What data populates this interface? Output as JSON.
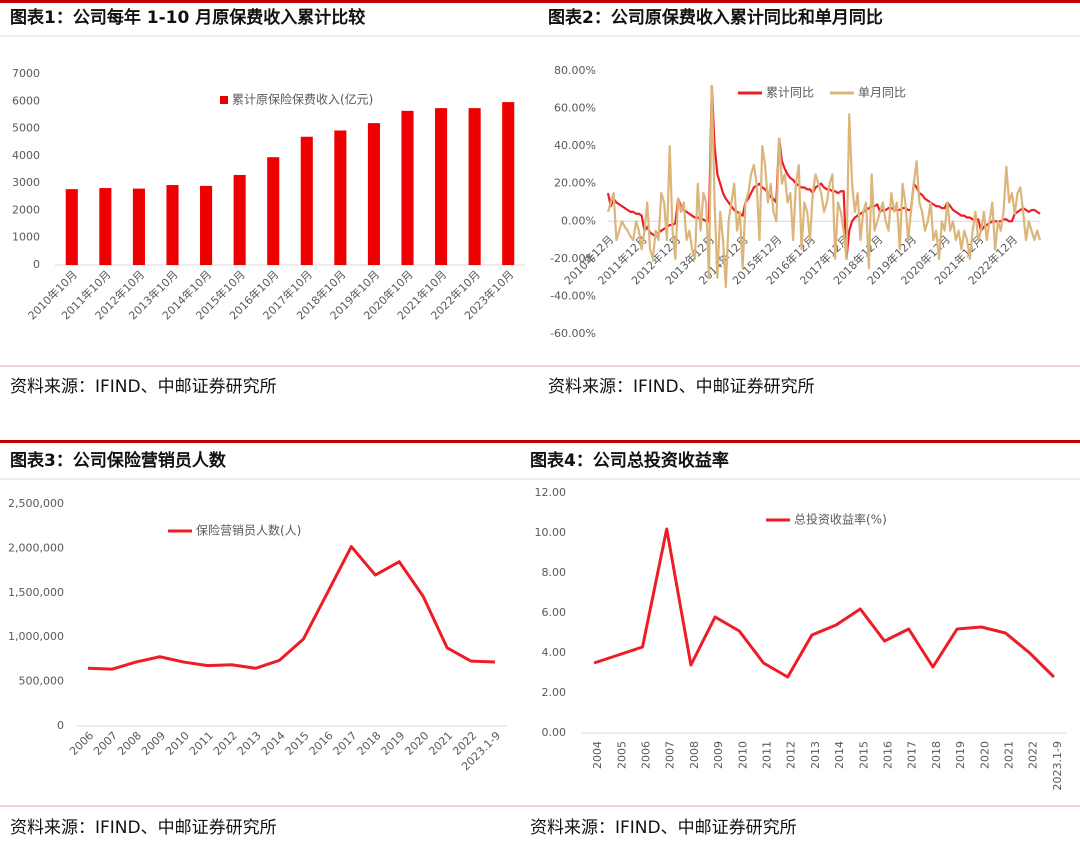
{
  "chart_data": [
    {
      "type": "bar",
      "title": "图表1：公司每年 1-10 月原保费收入累计比较",
      "source": "资料来源：IFIND、中邮证券研究所",
      "categories": [
        "2010年10月",
        "2011年10月",
        "2012年10月",
        "2013年10月",
        "2014年10月",
        "2015年10月",
        "2016年10月",
        "2017年10月",
        "2018年10月",
        "2019年10月",
        "2020年10月",
        "2021年10月",
        "2022年10月",
        "2023年10月"
      ],
      "series": [
        {
          "name": "累计原保险保费收入(亿元)",
          "color": "#ee0000",
          "values": [
            2780,
            2820,
            2800,
            2930,
            2900,
            3300,
            3950,
            4700,
            4930,
            5200,
            5650,
            5750,
            5750,
            5970
          ]
        }
      ],
      "ylim": [
        0,
        7000
      ],
      "yticks": [
        0,
        1000,
        2000,
        3000,
        4000,
        5000,
        6000,
        7000
      ]
    },
    {
      "type": "line",
      "title": "图表2：公司原保费收入累计同比和单月同比",
      "source": "资料来源：IFIND、中邮证券研究所",
      "categories": [
        "2010年12月",
        null,
        null,
        null,
        null,
        null,
        null,
        null,
        null,
        null,
        null,
        null,
        "2011年12月",
        null,
        null,
        null,
        null,
        null,
        null,
        null,
        null,
        null,
        null,
        null,
        "2012年12月",
        null,
        null,
        null,
        null,
        null,
        null,
        null,
        null,
        null,
        null,
        null,
        "2013年12月",
        null,
        null,
        null,
        null,
        null,
        null,
        null,
        null,
        null,
        null,
        null,
        "2014年12月",
        null,
        null,
        null,
        null,
        null,
        null,
        null,
        null,
        null,
        null,
        null,
        "2015年12月",
        null,
        null,
        null,
        null,
        null,
        null,
        null,
        null,
        null,
        null,
        null,
        "2016年12月",
        null,
        null,
        null,
        null,
        null,
        null,
        null,
        null,
        null,
        null,
        null,
        "2017年12月",
        null,
        null,
        null,
        null,
        null,
        null,
        null,
        null,
        null,
        null,
        null,
        "2018年12月",
        null,
        null,
        null,
        null,
        null,
        null,
        null,
        null,
        null,
        null,
        null,
        "2019年12月",
        null,
        null,
        null,
        null,
        null,
        null,
        null,
        null,
        null,
        null,
        null,
        "2020年12月",
        null,
        null,
        null,
        null,
        null,
        null,
        null,
        null,
        null,
        null,
        null,
        "2021年12月",
        null,
        null,
        null,
        null,
        null,
        null,
        null,
        null,
        null,
        null,
        null,
        "2022年12月",
        null,
        null,
        null,
        null,
        null,
        null,
        null,
        null,
        null,
        null
      ],
      "series": [
        {
          "name": "累计同比",
          "color": "#ee1c25",
          "values": [
            15,
            8,
            12,
            10,
            9,
            8,
            7,
            6,
            5,
            5,
            4,
            4,
            3,
            -5,
            -3,
            -6,
            -7,
            -8,
            -6,
            -5,
            -4,
            -3,
            -2,
            -2,
            -1,
            12,
            8,
            6,
            5,
            4,
            3,
            2,
            2,
            1,
            1,
            0,
            0,
            72,
            40,
            25,
            20,
            15,
            12,
            10,
            8,
            6,
            5,
            4,
            3,
            10,
            12,
            15,
            18,
            19,
            20,
            18,
            17,
            15,
            13,
            12,
            10,
            44,
            32,
            28,
            25,
            23,
            22,
            20,
            19,
            18,
            18,
            17,
            17,
            15,
            18,
            19,
            20,
            18,
            17,
            17,
            16,
            16,
            15,
            16,
            16,
            -20,
            -5,
            0,
            2,
            3,
            4,
            5,
            6,
            7,
            8,
            8,
            9,
            5,
            6,
            6,
            7,
            7,
            6,
            6,
            6,
            7,
            7,
            6,
            6,
            20,
            18,
            15,
            14,
            12,
            11,
            10,
            9,
            8,
            8,
            7,
            7,
            10,
            8,
            6,
            5,
            4,
            3,
            3,
            2,
            2,
            1,
            1,
            1,
            -5,
            -3,
            -2,
            -1,
            0,
            0,
            0,
            0,
            1,
            1,
            0,
            0,
            4,
            5,
            6,
            7,
            6,
            5,
            6,
            6,
            5,
            4
          ]
        },
        {
          "name": "单月同比",
          "color": "#dcb57a",
          "values": [
            5,
            10,
            15,
            -10,
            -5,
            0,
            -3,
            -5,
            -8,
            -10,
            0,
            -5,
            -15,
            -5,
            10,
            -15,
            -20,
            -5,
            -10,
            15,
            10,
            -10,
            40,
            -5,
            -20,
            12,
            5,
            10,
            -10,
            -5,
            -15,
            -20,
            20,
            -5,
            15,
            10,
            -30,
            72,
            10,
            -30,
            5,
            -10,
            -35,
            0,
            10,
            20,
            -5,
            5,
            -25,
            10,
            15,
            25,
            30,
            20,
            -10,
            40,
            30,
            10,
            20,
            5,
            0,
            44,
            20,
            25,
            10,
            15,
            -10,
            20,
            30,
            -15,
            10,
            5,
            -10,
            15,
            25,
            20,
            15,
            5,
            10,
            20,
            25,
            -20,
            10,
            5,
            -5,
            -20,
            57,
            20,
            5,
            15,
            -10,
            5,
            10,
            -25,
            25,
            -5,
            0,
            5,
            10,
            0,
            -5,
            15,
            5,
            10,
            -15,
            20,
            10,
            -10,
            5,
            20,
            32,
            10,
            5,
            -5,
            0,
            10,
            -10,
            -5,
            -20,
            0,
            -5,
            10,
            -5,
            0,
            -10,
            -5,
            -15,
            -5,
            -10,
            -20,
            -5,
            5,
            -10,
            -5,
            5,
            -10,
            0,
            10,
            -15,
            0,
            -5,
            5,
            29,
            10,
            15,
            4,
            15,
            18,
            5,
            -10,
            0,
            -5,
            -10,
            -5,
            -10
          ]
        }
      ],
      "ylim": [
        -60,
        80
      ],
      "yticks": [
        {
          "value": -60,
          "label": "-60.00%"
        },
        {
          "value": -40,
          "label": "-40.00%"
        },
        {
          "value": -20,
          "label": "-20.00%"
        },
        {
          "value": 0,
          "label": "0.00%"
        },
        {
          "value": 20,
          "label": "20.00%"
        },
        {
          "value": 40,
          "label": "40.00%"
        },
        {
          "value": 60,
          "label": "60.00%"
        },
        {
          "value": 80,
          "label": "80.00%"
        }
      ]
    },
    {
      "type": "line",
      "title": "图表3：公司保险营销员人数",
      "source": "资料来源：IFIND、中邮证券研究所",
      "categories": [
        "2006",
        "2007",
        "2008",
        "2009",
        "2010",
        "2011",
        "2012",
        "2013",
        "2014",
        "2015",
        "2016",
        "2017",
        "2018",
        "2019",
        "2020",
        "2021",
        "2022",
        "2023.1-9"
      ],
      "series": [
        {
          "name": "保险营销员人数(人)",
          "color": "#ee1c25",
          "values": [
            650000,
            640000,
            720000,
            780000,
            720000,
            680000,
            690000,
            650000,
            740000,
            980000,
            1500000,
            2020000,
            1700000,
            1850000,
            1460000,
            880000,
            730000,
            720000
          ]
        }
      ],
      "ylim": [
        0,
        2500000
      ],
      "yticks": [
        0,
        {
          "value": 500000,
          "label": "500,000"
        },
        {
          "value": 1000000,
          "label": "1,000,000"
        },
        {
          "value": 1500000,
          "label": "1,500,000"
        },
        {
          "value": 2000000,
          "label": "2,000,000"
        },
        {
          "value": 2500000,
          "label": "2,500,000"
        }
      ]
    },
    {
      "type": "line",
      "title": "图表4：公司总投资收益率",
      "source": "资料来源：IFIND、中邮证券研究所",
      "categories": [
        "2004",
        "2005",
        "2006",
        "2007",
        "2008",
        "2009",
        "2010",
        "2011",
        "2012",
        "2013",
        "2014",
        "2015",
        "2016",
        "2017",
        "2018",
        "2019",
        "2020",
        "2021",
        "2022",
        "2023.1-9"
      ],
      "series": [
        {
          "name": "总投资收益率(%)",
          "color": "#ee1c25",
          "values": [
            3.5,
            3.9,
            4.3,
            10.2,
            3.4,
            5.8,
            5.1,
            3.5,
            2.8,
            4.9,
            5.4,
            6.2,
            4.6,
            5.2,
            3.3,
            5.2,
            5.3,
            5.0,
            4.0,
            2.8
          ]
        }
      ],
      "ylim": [
        0,
        12
      ],
      "yticks": [
        {
          "value": 0,
          "label": "0.00"
        },
        {
          "value": 2,
          "label": "2.00"
        },
        {
          "value": 4,
          "label": "4.00"
        },
        {
          "value": 6,
          "label": "6.00"
        },
        {
          "value": 8,
          "label": "8.00"
        },
        {
          "value": 10,
          "label": "10.00"
        },
        {
          "value": 12,
          "label": "12.00"
        }
      ]
    }
  ]
}
